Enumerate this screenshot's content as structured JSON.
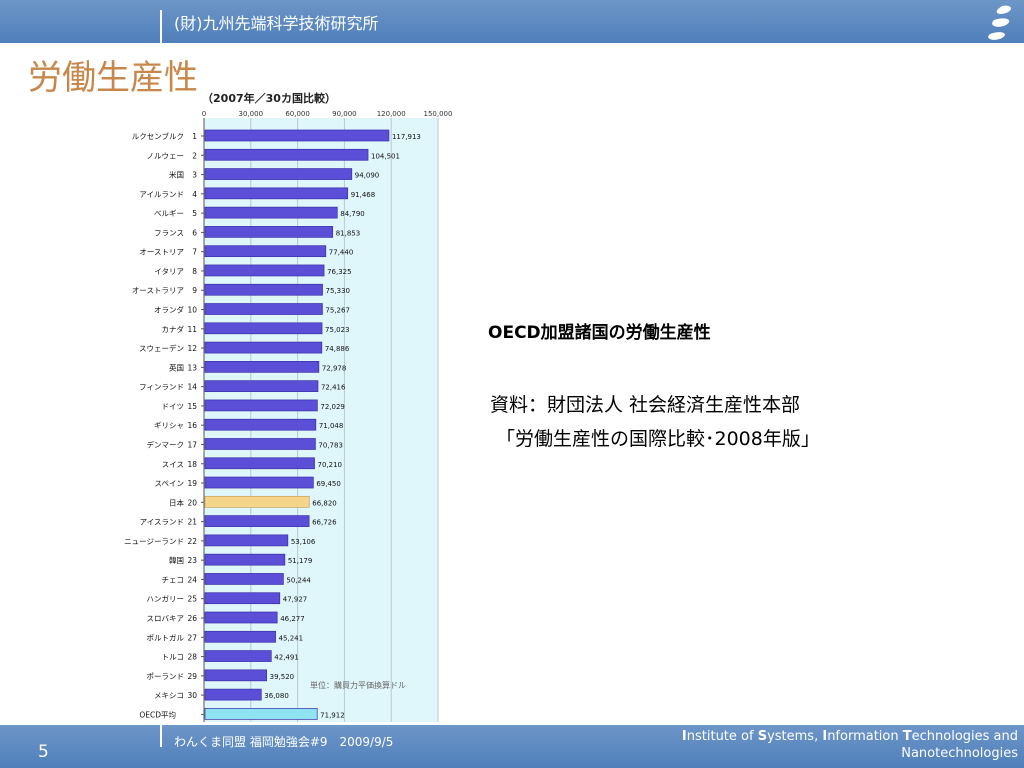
{
  "header": {
    "org": "(財)九州先端科学技術研究所"
  },
  "slide": {
    "title": "労働生産性",
    "oecd_heading": "OECD加盟諸国の労働生産性",
    "source_line1": "資料：財団法人 社会経済生産性本部",
    "source_line2": "「労働生産性の国際比較･2008年版」"
  },
  "footer": {
    "page": "5",
    "event": "わんくま同盟 福岡勉強会#9　2009/9/5",
    "institute_parts": [
      {
        "text": "I",
        "b": true
      },
      {
        "text": "nstitute of ",
        "b": false
      },
      {
        "text": "S",
        "b": true
      },
      {
        "text": "ystems, ",
        "b": false
      },
      {
        "text": "I",
        "b": true
      },
      {
        "text": "nformation ",
        "b": false
      },
      {
        "text": "T",
        "b": true
      },
      {
        "text": "echnologies and",
        "b": false
      }
    ],
    "institute_line2": "Nanotechnologies"
  },
  "colors": {
    "bar_main": "#5b4fd8",
    "bar_japan": "#f5d58a",
    "bar_oecd": "#8fe3f3",
    "bg_band": "#dff6fb",
    "title": "#c8874a"
  },
  "chart_data": {
    "type": "bar",
    "orientation": "horizontal",
    "title": "（2007年／30カ国比較）",
    "note": "単位：購買力平価換算ドル",
    "xlim": [
      0,
      150000
    ],
    "ticks": [
      "0",
      "30,000",
      "60,000",
      "90,000",
      "120,000",
      "150,000"
    ],
    "highlight": "日本",
    "categories": [
      "ルクセンブルク",
      "ノルウェー",
      "米国",
      "アイルランド",
      "ベルギー",
      "フランス",
      "オーストリア",
      "イタリア",
      "オーストラリア",
      "オランダ",
      "カナダ",
      "スウェーデン",
      "英国",
      "フィンランド",
      "ドイツ",
      "ギリシャ",
      "デンマーク",
      "スイス",
      "スペイン",
      "日本",
      "アイスランド",
      "ニュージーランド",
      "韓国",
      "チェコ",
      "ハンガリー",
      "スロバキア",
      "ポルトガル",
      "トルコ",
      "ポーランド",
      "メキシコ",
      "OECD平均"
    ],
    "ranks": [
      "1",
      "2",
      "3",
      "4",
      "5",
      "6",
      "7",
      "8",
      "9",
      "10",
      "11",
      "12",
      "13",
      "14",
      "15",
      "16",
      "17",
      "18",
      "19",
      "20",
      "21",
      "22",
      "23",
      "24",
      "25",
      "26",
      "27",
      "28",
      "29",
      "30",
      ""
    ],
    "values": [
      117913,
      104501,
      94090,
      91468,
      84790,
      81853,
      77440,
      76325,
      75330,
      75267,
      75023,
      74886,
      72978,
      72416,
      72029,
      71048,
      70783,
      70210,
      69450,
      66820,
      66726,
      53106,
      51179,
      50244,
      47927,
      46277,
      45241,
      42491,
      39520,
      36080,
      71912
    ],
    "value_labels": [
      "117,913",
      "104,501",
      "94,090",
      "91,468",
      "84,790",
      "81,853",
      "77,440",
      "76,325",
      "75,330",
      "75,267",
      "75,023",
      "74,886",
      "72,978",
      "72,416",
      "72,029",
      "71,048",
      "70,783",
      "70,210",
      "69,450",
      "66,820",
      "66,726",
      "53,106",
      "51,179",
      "50,244",
      "47,927",
      "46,277",
      "45,241",
      "42,491",
      "39,520",
      "36,080",
      "71,912"
    ]
  }
}
